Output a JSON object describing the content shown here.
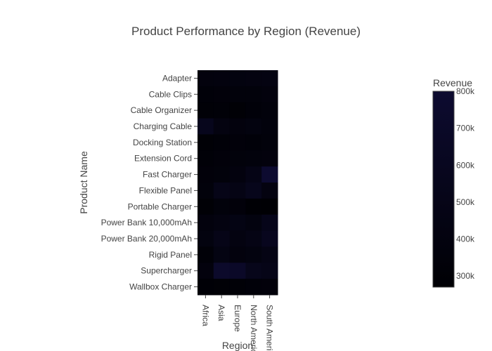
{
  "chart_data": {
    "type": "heatmap",
    "title": "Product Performance by Region (Revenue)",
    "xlabel": "Region",
    "ylabel": "Product Name",
    "x": [
      "Africa",
      "Asia",
      "Europe",
      "North America",
      "South America"
    ],
    "y": [
      "Adapter",
      "Cable Clips",
      "Cable Organizer",
      "Charging Cable",
      "Docking Station",
      "Extension Cord",
      "Fast Charger",
      "Flexible Panel",
      "Portable Charger",
      "Power Bank 10,000mAh",
      "Power Bank 20,000mAh",
      "Rigid Panel",
      "Supercharger",
      "Wallbox Charger"
    ],
    "z": [
      [
        380000,
        390000,
        400000,
        420000,
        430000
      ],
      [
        330000,
        340000,
        360000,
        350000,
        380000
      ],
      [
        310000,
        320000,
        300000,
        330000,
        360000
      ],
      [
        560000,
        420000,
        380000,
        400000,
        370000
      ],
      [
        300000,
        320000,
        340000,
        330000,
        350000
      ],
      [
        320000,
        340000,
        350000,
        370000,
        380000
      ],
      [
        340000,
        360000,
        390000,
        480000,
        800000
      ],
      [
        350000,
        500000,
        460000,
        550000,
        420000
      ],
      [
        300000,
        360000,
        340000,
        280000,
        270000
      ],
      [
        380000,
        420000,
        450000,
        400000,
        520000
      ],
      [
        400000,
        500000,
        420000,
        460000,
        580000
      ],
      [
        320000,
        440000,
        380000,
        400000,
        460000
      ],
      [
        380000,
        740000,
        700000,
        540000,
        500000
      ],
      [
        290000,
        300000,
        310000,
        330000,
        340000
      ]
    ],
    "colorbar": {
      "title": "Revenue",
      "range": [
        270000,
        800000
      ],
      "tickvals": [
        300000,
        400000,
        500000,
        600000,
        700000,
        800000
      ],
      "ticktext": [
        "300k",
        "400k",
        "500k",
        "600k",
        "700k",
        "800k"
      ],
      "colorscale": [
        "#000004",
        "#0d0b30"
      ]
    },
    "grid": false,
    "legend": "none"
  }
}
